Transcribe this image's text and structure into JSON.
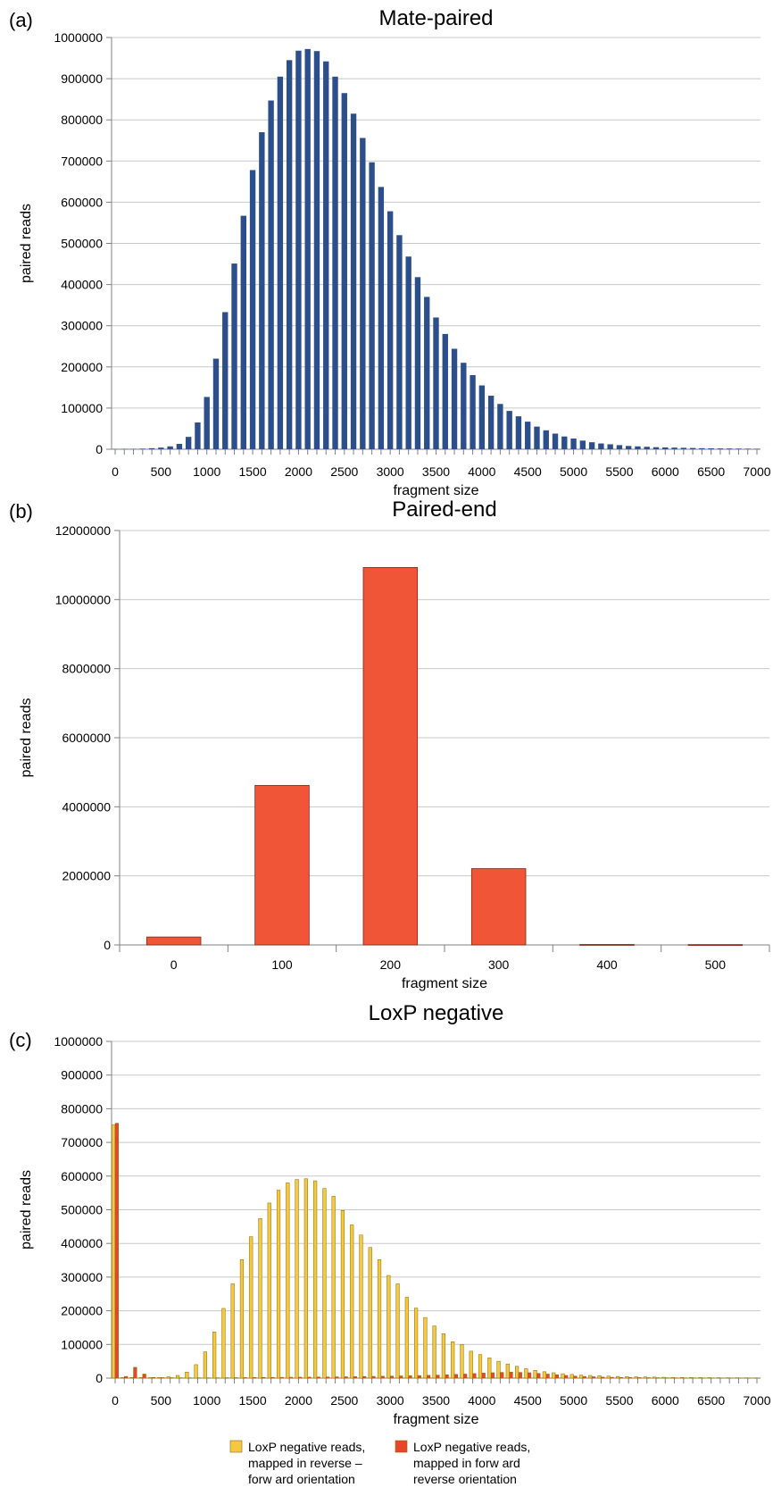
{
  "chart_data": [
    {
      "panel": "(a)",
      "type": "bar",
      "title": "Mate-paired",
      "xlabel": "fragment size",
      "ylabel": "paired reads",
      "ylim": [
        0,
        1000000
      ],
      "yticks": [
        0,
        100000,
        200000,
        300000,
        400000,
        500000,
        600000,
        700000,
        800000,
        900000,
        1000000
      ],
      "xtick_labels": [
        "0",
        "500",
        "1000",
        "1500",
        "2000",
        "2500",
        "3000",
        "3500",
        "4000",
        "4500",
        "5000",
        "5500",
        "6000",
        "6500",
        "7000"
      ],
      "grid": true,
      "x": [
        0,
        100,
        200,
        300,
        400,
        500,
        600,
        700,
        800,
        900,
        1000,
        1100,
        1200,
        1300,
        1400,
        1500,
        1600,
        1700,
        1800,
        1900,
        2000,
        2100,
        2200,
        2300,
        2400,
        2500,
        2600,
        2700,
        2800,
        2900,
        3000,
        3100,
        3200,
        3300,
        3400,
        3500,
        3600,
        3700,
        3800,
        3900,
        4000,
        4100,
        4200,
        4300,
        4400,
        4500,
        4600,
        4700,
        4800,
        4900,
        5000,
        5100,
        5200,
        5300,
        5400,
        5500,
        5600,
        5700,
        5800,
        5900,
        6000,
        6100,
        6200,
        6300,
        6400,
        6500,
        6600,
        6700,
        6800,
        6900,
        7000
      ],
      "series": [
        {
          "color": "#2c4f8c",
          "values": [
            500,
            800,
            1000,
            1500,
            2500,
            4000,
            7000,
            13000,
            30000,
            65000,
            127000,
            220000,
            333000,
            451000,
            567000,
            678000,
            770000,
            847000,
            905000,
            945000,
            968000,
            972000,
            967000,
            942000,
            905000,
            865000,
            815000,
            756000,
            697000,
            637000,
            578000,
            520000,
            468000,
            418000,
            370000,
            320000,
            280000,
            244000,
            210000,
            180000,
            155000,
            130000,
            110000,
            93000,
            80000,
            67000,
            55000,
            46000,
            38000,
            31000,
            26000,
            21000,
            17000,
            14000,
            12000,
            10000,
            8000,
            7000,
            6000,
            5000,
            4500,
            4000,
            3500,
            3000,
            2500,
            2200,
            2000,
            1800,
            1600,
            1400,
            1200
          ]
        }
      ]
    },
    {
      "panel": "(b)",
      "type": "bar",
      "title": "Paired-end",
      "xlabel": "fragment size",
      "ylabel": "paired reads",
      "ylim": [
        0,
        12000000
      ],
      "yticks": [
        0,
        2000000,
        4000000,
        6000000,
        8000000,
        10000000,
        12000000
      ],
      "grid": true,
      "categories": [
        "0",
        "100",
        "200",
        "300",
        "400",
        "500"
      ],
      "series": [
        {
          "color": "#f05538",
          "values": [
            230000,
            4620000,
            10930000,
            2210000,
            15000,
            10000
          ]
        }
      ]
    },
    {
      "panel": "(c)",
      "type": "bar",
      "title": "LoxP negative",
      "xlabel": "fragment size",
      "ylabel": "paired reads",
      "ylim": [
        0,
        1000000
      ],
      "yticks": [
        0,
        100000,
        200000,
        300000,
        400000,
        500000,
        600000,
        700000,
        800000,
        900000,
        1000000
      ],
      "xtick_labels": [
        "0",
        "500",
        "1000",
        "1500",
        "2000",
        "2500",
        "3000",
        "3500",
        "4000",
        "4500",
        "5000",
        "5500",
        "6000",
        "6500",
        "7000"
      ],
      "grid": true,
      "legend_position": "bottom",
      "x": [
        0,
        100,
        200,
        300,
        400,
        500,
        600,
        700,
        800,
        900,
        1000,
        1100,
        1200,
        1300,
        1400,
        1500,
        1600,
        1700,
        1800,
        1900,
        2000,
        2100,
        2200,
        2300,
        2400,
        2500,
        2600,
        2700,
        2800,
        2900,
        3000,
        3100,
        3200,
        3300,
        3400,
        3500,
        3600,
        3700,
        3800,
        3900,
        4000,
        4100,
        4200,
        4300,
        4400,
        4500,
        4600,
        4700,
        4800,
        4900,
        5000,
        5100,
        5200,
        5300,
        5400,
        5500,
        5600,
        5700,
        5800,
        5900,
        6000,
        6100,
        6200,
        6300,
        6400,
        6500,
        6600,
        6700,
        6800,
        6900,
        7000
      ],
      "series": [
        {
          "name": "LoxP negative reads, mapped in reverse – forw ard orientation",
          "color": "#f5c842",
          "values": [
            752000,
            2000,
            2000,
            1500,
            1500,
            2000,
            4000,
            8000,
            18000,
            40000,
            78000,
            137000,
            207000,
            280000,
            352000,
            420000,
            474000,
            520000,
            558000,
            580000,
            590000,
            592000,
            586000,
            563000,
            540000,
            498000,
            455000,
            425000,
            388000,
            352000,
            305000,
            280000,
            240000,
            208000,
            180000,
            155000,
            132000,
            108000,
            100000,
            80000,
            70000,
            60000,
            50000,
            42000,
            35000,
            28000,
            23000,
            19000,
            16000,
            13000,
            11000,
            9000,
            8000,
            7000,
            6000,
            5000,
            4500,
            4000,
            3500,
            3000,
            2500,
            2200,
            2000,
            1800,
            1600,
            1400,
            1200,
            1100,
            1000,
            900,
            800
          ]
        },
        {
          "name": "LoxP negative reads, mapped in forw ard – reverse orientation",
          "color": "#e8452c",
          "values": [
            757000,
            5000,
            32000,
            12000,
            2000,
            1500,
            1200,
            1000,
            1000,
            1000,
            1000,
            1000,
            1200,
            1400,
            1600,
            1800,
            2000,
            2200,
            2400,
            2600,
            2800,
            3000,
            3200,
            3500,
            3800,
            4100,
            4400,
            4800,
            5200,
            5600,
            6000,
            6500,
            7000,
            7600,
            8200,
            9000,
            10000,
            11000,
            12000,
            13500,
            15000,
            16000,
            17000,
            18000,
            17000,
            16000,
            14000,
            12000,
            10000,
            8000,
            6000,
            5000,
            4000,
            3000,
            2500,
            2000,
            1800,
            1600,
            1400,
            1200,
            1000,
            900,
            800,
            700,
            600,
            500,
            450,
            400,
            350,
            300,
            250
          ]
        }
      ]
    }
  ]
}
